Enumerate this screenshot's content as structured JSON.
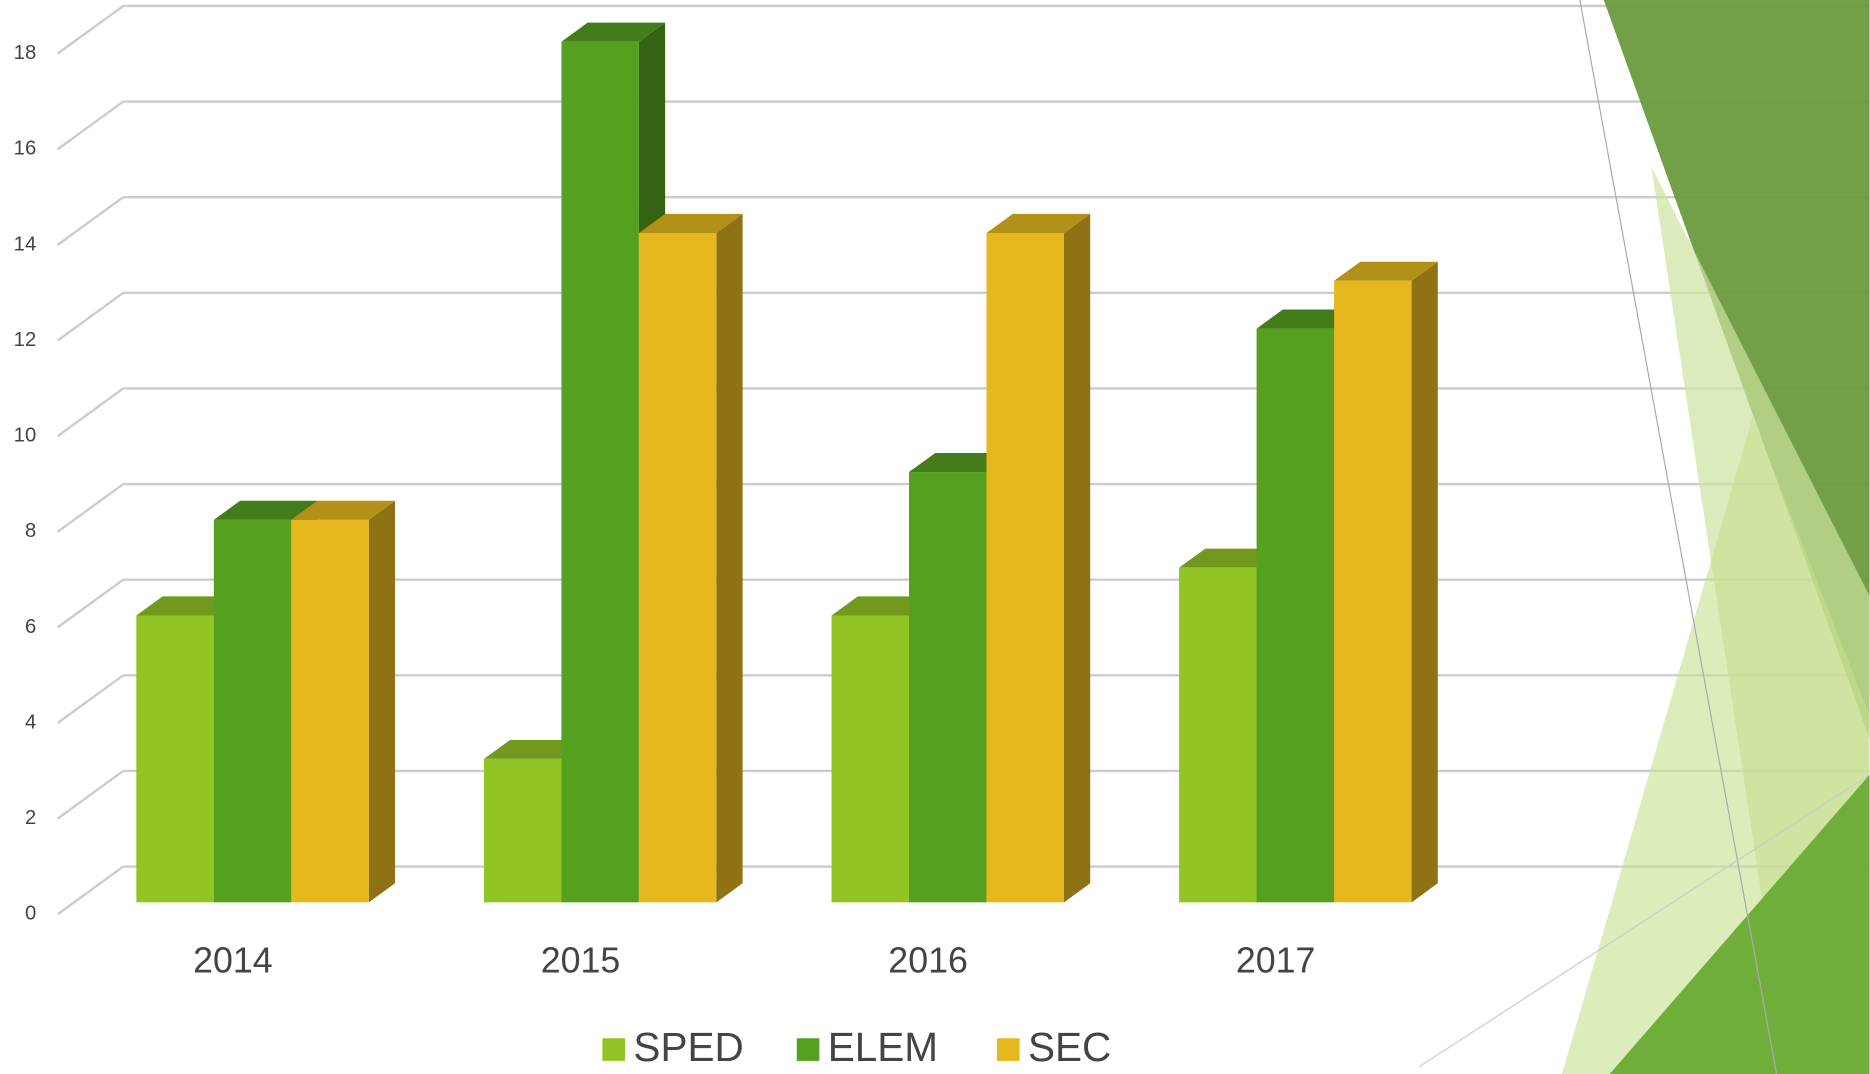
{
  "chart_data": {
    "type": "bar3d",
    "categories": [
      "2014",
      "2015",
      "2016",
      "2017"
    ],
    "series": [
      {
        "name": "SPED",
        "color": "#92c426",
        "values": [
          6,
          3,
          6,
          7
        ]
      },
      {
        "name": "ELEM",
        "color": "#56a020",
        "values": [
          8,
          18,
          9,
          12
        ]
      },
      {
        "name": "SEC",
        "color": "#e6b81e",
        "values": [
          8,
          14,
          14,
          13
        ]
      }
    ],
    "ylim": [
      0,
      18
    ],
    "yticks": [
      0,
      2,
      4,
      6,
      8,
      10,
      12,
      14,
      16,
      18
    ],
    "grid": true,
    "legend": "bottom"
  }
}
